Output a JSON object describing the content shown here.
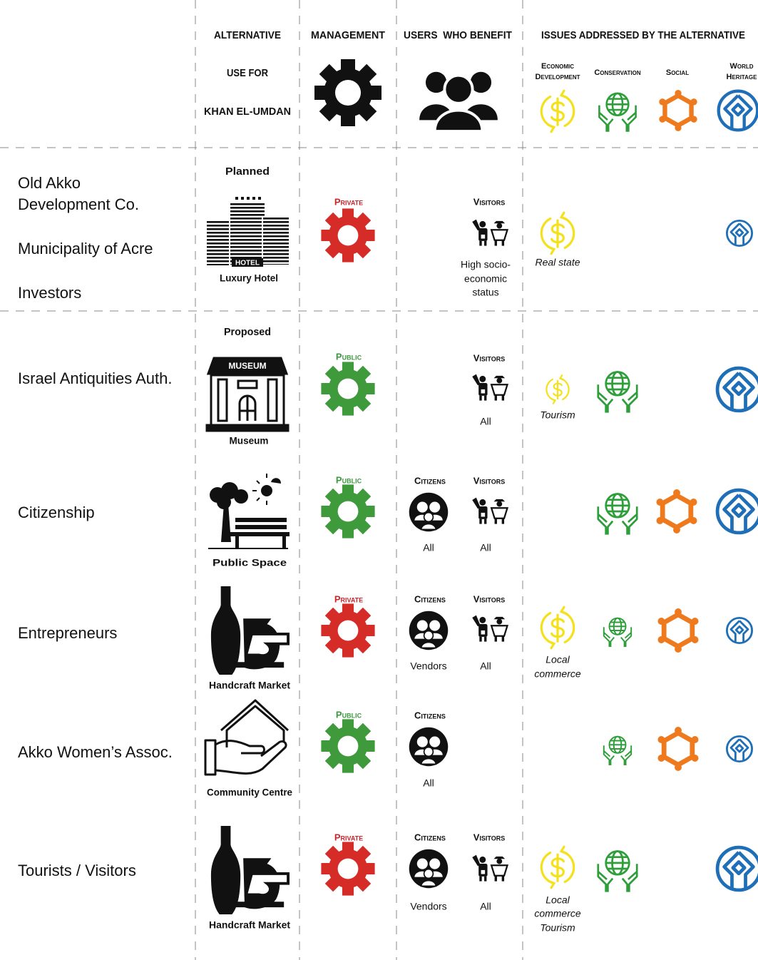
{
  "header": {
    "alternative": [
      "ALTERNATIVE",
      "USE FOR",
      "KHAN EL-UMDAN"
    ],
    "management": "MANAGEMENT",
    "users": "USERS  WHO BENEFIT",
    "issues": "ISSUES ADDRESSED BY THE ALTERNATIVE",
    "issue_columns": {
      "economic": [
        "Economic",
        "Development"
      ],
      "conservation": [
        "Conservation"
      ],
      "social": [
        "Social"
      ],
      "world_heritage": [
        "World",
        "Heritage"
      ]
    }
  },
  "rows": [
    {
      "stakeholders": [
        "Old Akko",
        "Development Co.",
        "Municipality of Acre",
        "Investors"
      ],
      "status": "Planned",
      "alternative": {
        "icon_label": "HOTEL",
        "label": "Luxury Hotel"
      },
      "management": "Private",
      "users": {
        "visitors": {
          "label": "Visitors",
          "note": [
            "High socio-",
            "economic",
            "status"
          ]
        }
      },
      "economic_note": [
        "Real state"
      ]
    },
    {
      "stakeholders": [
        "Israel Antiquities Auth."
      ],
      "status": "Proposed",
      "alternative": {
        "icon_label": "MUSEUM",
        "label": "Museum"
      },
      "management": "Public",
      "users": {
        "visitors": {
          "label": "Visitors",
          "note": [
            "All"
          ]
        }
      },
      "economic_note": [
        "Tourism"
      ]
    },
    {
      "stakeholders": [
        "Citizenship"
      ],
      "alternative": {
        "label": "Public Space"
      },
      "management": "Public",
      "users": {
        "citizens": {
          "label": "Citizens",
          "note": [
            "All"
          ]
        },
        "visitors": {
          "label": "Visitors",
          "note": [
            "All"
          ]
        }
      }
    },
    {
      "stakeholders": [
        "Entrepreneurs"
      ],
      "alternative": {
        "label": "Handcraft Market"
      },
      "management": "Private",
      "users": {
        "citizens": {
          "label": "Citizens",
          "note": [
            "Vendors"
          ]
        },
        "visitors": {
          "label": "Visitors",
          "note": [
            "All"
          ]
        }
      },
      "economic_note": [
        "Local",
        "commerce"
      ]
    },
    {
      "stakeholders": [
        "Akko Women’s Assoc."
      ],
      "alternative": {
        "label": "Community Centre"
      },
      "management": "Public",
      "users": {
        "citizens": {
          "label": "Citizens",
          "note": [
            "All"
          ]
        }
      }
    },
    {
      "stakeholders": [
        "Tourists / Visitors"
      ],
      "alternative": {
        "label": "Handcraft Market"
      },
      "management": "Private",
      "users": {
        "citizens": {
          "label": "Citizens",
          "note": [
            "Vendors"
          ]
        },
        "visitors": {
          "label": "Visitors",
          "note": [
            "All"
          ]
        }
      },
      "economic_note": [
        "Local",
        "commerce",
        "Tourism"
      ]
    }
  ]
}
